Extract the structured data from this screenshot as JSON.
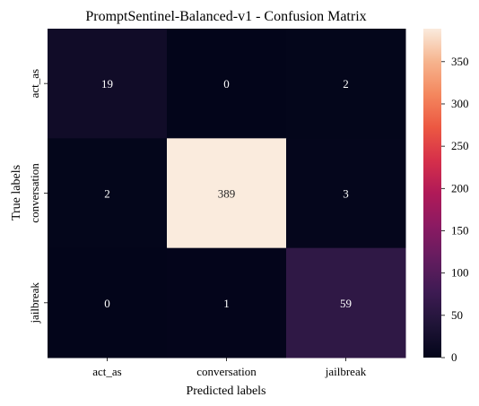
{
  "chart_data": {
    "type": "heatmap",
    "title": "PromptSentinel-Balanced-v1 - Confusion Matrix",
    "xlabel": "Predicted labels",
    "ylabel": "True labels",
    "x_categories": [
      "act_as",
      "conversation",
      "jailbreak"
    ],
    "y_categories": [
      "act_as",
      "conversation",
      "jailbreak"
    ],
    "values": [
      [
        19,
        0,
        2
      ],
      [
        2,
        389,
        3
      ],
      [
        0,
        1,
        59
      ]
    ],
    "colorbar": {
      "min": 0,
      "max": 389,
      "ticks": [
        0,
        50,
        100,
        150,
        200,
        250,
        300,
        350
      ],
      "colormap": "rocket"
    },
    "annotation_colors": {
      "on_dark": "#ffffff",
      "on_light": "#262626"
    }
  }
}
